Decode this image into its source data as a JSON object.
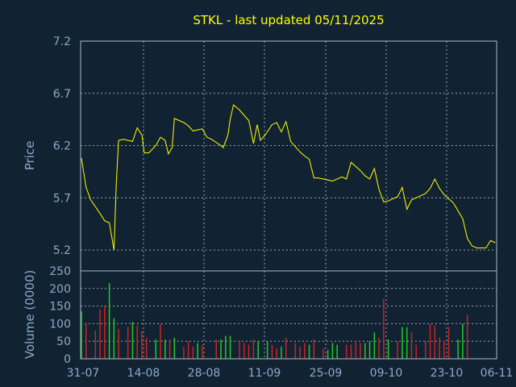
{
  "chart_data": {
    "type": "line",
    "title": "STKL - last updated 05/11/2025",
    "colors": {
      "background": "#112233",
      "price_line": "#ffff00",
      "volume_up": "#22cc22",
      "volume_down": "#cc2222",
      "text": "#8da9c8",
      "grid": "#aebbc8"
    },
    "grid": true,
    "x_tick_labels": [
      "31-07",
      "14-08",
      "28-08",
      "11-09",
      "25-09",
      "09-10",
      "23-10",
      "06-11"
    ],
    "price_panel": {
      "ylabel": "Price",
      "ylim": [
        5.0,
        7.2
      ],
      "y_ticks": [
        "7.2",
        "6.7",
        "6.2",
        "5.7",
        "5.2"
      ],
      "y_tick_values": [
        7.2,
        6.7,
        6.2,
        5.7,
        5.2
      ],
      "series": [
        {
          "values": [
            [
              0.0,
              6.08
            ],
            [
              1.0,
              5.8
            ],
            [
              2.0,
              5.68
            ],
            [
              4.0,
              5.55
            ],
            [
              5.0,
              5.48
            ],
            [
              6.0,
              5.46
            ],
            [
              7.0,
              5.2
            ],
            [
              7.5,
              5.85
            ],
            [
              8.0,
              6.25
            ],
            [
              9.0,
              6.26
            ],
            [
              10.0,
              6.25
            ],
            [
              11.0,
              6.24
            ],
            [
              12.0,
              6.37
            ],
            [
              13.0,
              6.3
            ],
            [
              13.5,
              6.13
            ],
            [
              14.5,
              6.13
            ],
            [
              16.0,
              6.2
            ],
            [
              17.0,
              6.28
            ],
            [
              18.0,
              6.25
            ],
            [
              18.7,
              6.12
            ],
            [
              19.5,
              6.18
            ],
            [
              20.0,
              6.46
            ],
            [
              22.0,
              6.42
            ],
            [
              23.0,
              6.39
            ],
            [
              24.0,
              6.34
            ],
            [
              25.0,
              6.35
            ],
            [
              26.0,
              6.36
            ],
            [
              27.0,
              6.28
            ],
            [
              28.0,
              6.26
            ],
            [
              30.0,
              6.2
            ],
            [
              30.5,
              6.18
            ],
            [
              31.5,
              6.3
            ],
            [
              32.0,
              6.45
            ],
            [
              32.7,
              6.59
            ],
            [
              34.0,
              6.54
            ],
            [
              35.0,
              6.49
            ],
            [
              36.0,
              6.44
            ],
            [
              37.0,
              6.22
            ],
            [
              37.8,
              6.4
            ],
            [
              38.5,
              6.25
            ],
            [
              39.5,
              6.3
            ],
            [
              41.0,
              6.4
            ],
            [
              42.0,
              6.42
            ],
            [
              43.0,
              6.33
            ],
            [
              44.0,
              6.43
            ],
            [
              45.0,
              6.24
            ],
            [
              47.0,
              6.14
            ],
            [
              48.0,
              6.1
            ],
            [
              49.0,
              6.07
            ],
            [
              50.0,
              5.89
            ],
            [
              51.0,
              5.89
            ],
            [
              53.0,
              5.87
            ],
            [
              54.0,
              5.86
            ],
            [
              56.0,
              5.9
            ],
            [
              57.0,
              5.88
            ],
            [
              58.0,
              6.04
            ],
            [
              59.0,
              6.0
            ],
            [
              60.0,
              5.96
            ],
            [
              61.0,
              5.91
            ],
            [
              62.0,
              5.88
            ],
            [
              63.0,
              5.98
            ],
            [
              64.0,
              5.78
            ],
            [
              65.0,
              5.66
            ],
            [
              66.0,
              5.67
            ],
            [
              67.0,
              5.69
            ],
            [
              68.0,
              5.71
            ],
            [
              69.0,
              5.8
            ],
            [
              70.0,
              5.59
            ],
            [
              71.0,
              5.68
            ],
            [
              72.0,
              5.7
            ],
            [
              73.0,
              5.72
            ],
            [
              74.0,
              5.74
            ],
            [
              75.0,
              5.79
            ],
            [
              76.0,
              5.88
            ],
            [
              77.0,
              5.79
            ],
            [
              78.0,
              5.73
            ],
            [
              79.0,
              5.69
            ],
            [
              80.0,
              5.65
            ],
            [
              82.0,
              5.5
            ],
            [
              83.0,
              5.31
            ],
            [
              84.0,
              5.24
            ],
            [
              85.0,
              5.22
            ],
            [
              86.0,
              5.22
            ],
            [
              87.0,
              5.22
            ],
            [
              88.0,
              5.29
            ],
            [
              89.0,
              5.27
            ]
          ]
        }
      ]
    },
    "volume_panel": {
      "ylabel": "Volume (0000)",
      "ylim": [
        0,
        250
      ],
      "y_ticks": [
        "250",
        "200",
        "150",
        "100",
        "50",
        "0"
      ],
      "y_tick_values": [
        250,
        200,
        150,
        100,
        50,
        0
      ],
      "bars": [
        [
          0,
          135,
          "up"
        ],
        [
          1,
          100,
          "down"
        ],
        [
          3,
          80,
          "down"
        ],
        [
          4,
          140,
          "down"
        ],
        [
          5,
          150,
          "down"
        ],
        [
          6,
          215,
          "up"
        ],
        [
          7,
          115,
          "up"
        ],
        [
          8,
          85,
          "down"
        ],
        [
          10,
          90,
          "down"
        ],
        [
          11,
          105,
          "up"
        ],
        [
          12,
          95,
          "down"
        ],
        [
          13,
          80,
          "down"
        ],
        [
          14,
          60,
          "down"
        ],
        [
          16,
          55,
          "up"
        ],
        [
          17,
          100,
          "down"
        ],
        [
          18,
          55,
          "up"
        ],
        [
          19,
          55,
          "down"
        ],
        [
          20,
          60,
          "up"
        ],
        [
          22,
          35,
          "down"
        ],
        [
          23,
          50,
          "down"
        ],
        [
          24,
          35,
          "down"
        ],
        [
          25,
          45,
          "up"
        ],
        [
          26,
          40,
          "down"
        ],
        [
          29,
          55,
          "down"
        ],
        [
          30,
          55,
          "up"
        ],
        [
          31,
          65,
          "up"
        ],
        [
          32,
          65,
          "up"
        ],
        [
          34,
          50,
          "down"
        ],
        [
          35,
          45,
          "down"
        ],
        [
          36,
          40,
          "down"
        ],
        [
          37,
          55,
          "down"
        ],
        [
          38,
          50,
          "up"
        ],
        [
          40,
          50,
          "up"
        ],
        [
          41,
          40,
          "down"
        ],
        [
          42,
          30,
          "down"
        ],
        [
          43,
          35,
          "up"
        ],
        [
          44,
          60,
          "down"
        ],
        [
          46,
          45,
          "down"
        ],
        [
          47,
          35,
          "down"
        ],
        [
          48,
          45,
          "down"
        ],
        [
          49,
          40,
          "up"
        ],
        [
          50,
          55,
          "down"
        ],
        [
          52,
          30,
          "down"
        ],
        [
          53,
          25,
          "up"
        ],
        [
          54,
          45,
          "up"
        ],
        [
          55,
          40,
          "up"
        ],
        [
          57,
          40,
          "down"
        ],
        [
          58,
          40,
          "down"
        ],
        [
          59,
          50,
          "down"
        ],
        [
          60,
          45,
          "down"
        ],
        [
          61,
          45,
          "up"
        ],
        [
          62,
          50,
          "up"
        ],
        [
          63,
          75,
          "up"
        ],
        [
          64,
          60,
          "down"
        ],
        [
          65,
          170,
          "down"
        ],
        [
          66,
          55,
          "up"
        ],
        [
          68,
          50,
          "down"
        ],
        [
          69,
          90,
          "up"
        ],
        [
          70,
          90,
          "up"
        ],
        [
          71,
          75,
          "down"
        ],
        [
          72,
          40,
          "down"
        ],
        [
          74,
          50,
          "down"
        ],
        [
          75,
          100,
          "down"
        ],
        [
          76,
          95,
          "down"
        ],
        [
          77,
          60,
          "down"
        ],
        [
          78,
          50,
          "down"
        ],
        [
          79,
          90,
          "down"
        ],
        [
          81,
          55,
          "up"
        ],
        [
          82,
          100,
          "up"
        ],
        [
          83,
          125,
          "down"
        ]
      ]
    }
  }
}
